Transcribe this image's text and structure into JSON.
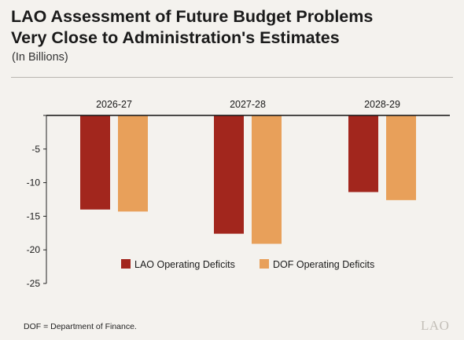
{
  "title_lines": [
    "LAO Assessment of Future Budget Problems",
    "Very Close to Administration's Estimates"
  ],
  "subtitle": "(In Billions)",
  "footnote": "DOF = Department of Finance.",
  "logo_text": "LAO",
  "chart_data": {
    "type": "bar",
    "title": "",
    "xlabel": "",
    "ylabel": "",
    "categories": [
      "2026-27",
      "2027-28",
      "2028-29"
    ],
    "series": [
      {
        "name": "LAO Operating Deficits",
        "color": "#a2261d",
        "values": [
          -14.0,
          -17.6,
          -11.4
        ]
      },
      {
        "name": "DOF Operating Deficits",
        "color": "#e8a05a",
        "values": [
          -14.3,
          -19.1,
          -12.6
        ]
      }
    ],
    "yticks": [
      0,
      -5,
      -10,
      -15,
      -20,
      -25
    ],
    "ytick_labels": [
      "",
      "-5",
      "-10",
      "-15",
      "-20",
      "-25"
    ],
    "ylim": [
      -25,
      0
    ],
    "category_labels_position": "top",
    "legend": "bottom-center",
    "grid": false
  }
}
